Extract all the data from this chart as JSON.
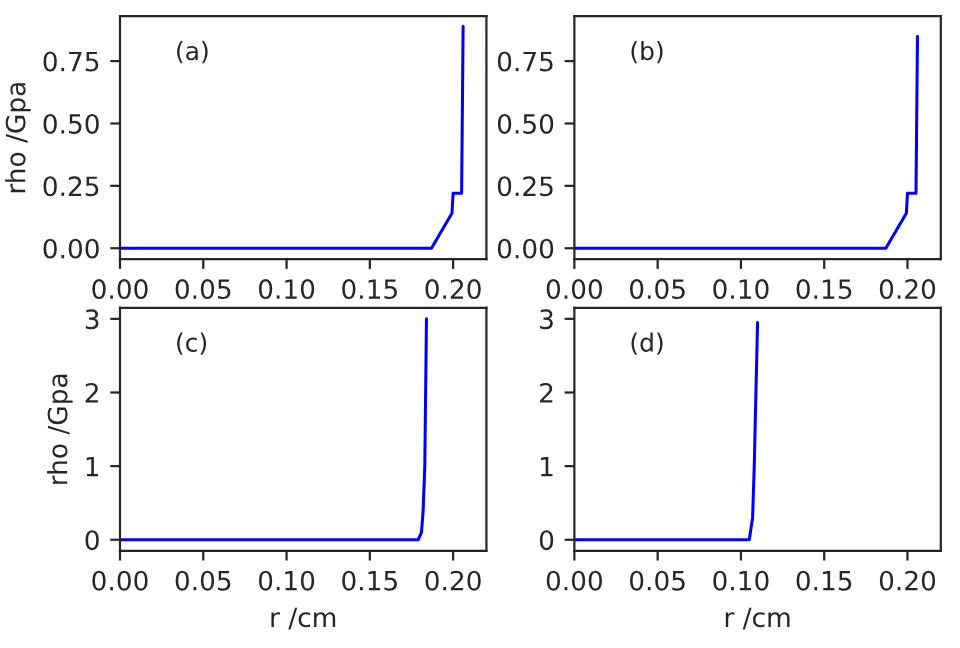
{
  "chart_data": [
    {
      "type": "line",
      "ylabel": "rho /Gpa",
      "annotations": [
        "(a)"
      ],
      "x": [
        0,
        0.187,
        0.1993,
        0.2,
        0.2051,
        0.206
      ],
      "series": [
        {
          "color": "#0000ff",
          "values": [
            0,
            0,
            0.14,
            0.22,
            0.22,
            0.89
          ]
        }
      ],
      "xlim": [
        0,
        0.22
      ],
      "xticks": [
        {
          "value": 0,
          "label": "0.00"
        },
        {
          "value": 0.05,
          "label": "0.05"
        },
        {
          "value": 0.1,
          "label": "0.10"
        },
        {
          "value": 0.15,
          "label": "0.15"
        },
        {
          "value": 0.2,
          "label": "0.20"
        }
      ],
      "ylim": [
        -0.044,
        0.93
      ],
      "yticks": [
        {
          "value": 0,
          "label": "0.00"
        },
        {
          "value": 0.25,
          "label": "0.25"
        },
        {
          "value": 0.5,
          "label": "0.50"
        },
        {
          "value": 0.75,
          "label": "0.75"
        }
      ]
    },
    {
      "type": "line",
      "annotations": [
        "(b)"
      ],
      "x": [
        0,
        0.187,
        0.1993,
        0.2,
        0.2051,
        0.206
      ],
      "series": [
        {
          "color": "#0000ff",
          "values": [
            0,
            0,
            0.14,
            0.22,
            0.22,
            0.85
          ]
        }
      ],
      "xlim": [
        0,
        0.22
      ],
      "xticks": [
        {
          "value": 0,
          "label": "0.00"
        },
        {
          "value": 0.05,
          "label": "0.05"
        },
        {
          "value": 0.1,
          "label": "0.10"
        },
        {
          "value": 0.15,
          "label": "0.15"
        },
        {
          "value": 0.2,
          "label": "0.20"
        }
      ],
      "ylim": [
        -0.044,
        0.93
      ],
      "yticks": [
        {
          "value": 0,
          "label": "0.00"
        },
        {
          "value": 0.25,
          "label": "0.25"
        },
        {
          "value": 0.5,
          "label": "0.50"
        },
        {
          "value": 0.75,
          "label": "0.75"
        }
      ]
    },
    {
      "type": "line",
      "ylabel": "rho /Gpa",
      "xlabel": "r /cm",
      "annotations": [
        "(c)"
      ],
      "x": [
        0,
        0.179,
        0.181,
        0.182,
        0.183,
        0.1835,
        0.184
      ],
      "series": [
        {
          "color": "#0000ff",
          "values": [
            0,
            0,
            0.1,
            0.4,
            1.0,
            2.0,
            3.0
          ]
        }
      ],
      "xlim": [
        0,
        0.22
      ],
      "xticks": [
        {
          "value": 0,
          "label": "0.00"
        },
        {
          "value": 0.05,
          "label": "0.05"
        },
        {
          "value": 0.1,
          "label": "0.10"
        },
        {
          "value": 0.15,
          "label": "0.15"
        },
        {
          "value": 0.2,
          "label": "0.20"
        }
      ],
      "ylim": [
        -0.15,
        3.15
      ],
      "yticks": [
        0,
        1,
        2,
        3
      ]
    },
    {
      "type": "line",
      "xlabel": "r /cm",
      "annotations": [
        "(d)"
      ],
      "x": [
        0,
        0.105,
        0.107,
        0.108,
        0.109,
        0.11
      ],
      "series": [
        {
          "color": "#0000ff",
          "values": [
            0,
            0,
            0.3,
            1.0,
            2.0,
            2.95
          ]
        }
      ],
      "xlim": [
        0,
        0.22
      ],
      "xticks": [
        {
          "value": 0,
          "label": "0.00"
        },
        {
          "value": 0.05,
          "label": "0.05"
        },
        {
          "value": 0.1,
          "label": "0.10"
        },
        {
          "value": 0.15,
          "label": "0.15"
        },
        {
          "value": 0.2,
          "label": "0.20"
        }
      ],
      "ylim": [
        -0.15,
        3.15
      ],
      "yticks": [
        0,
        1,
        2,
        3
      ]
    }
  ]
}
